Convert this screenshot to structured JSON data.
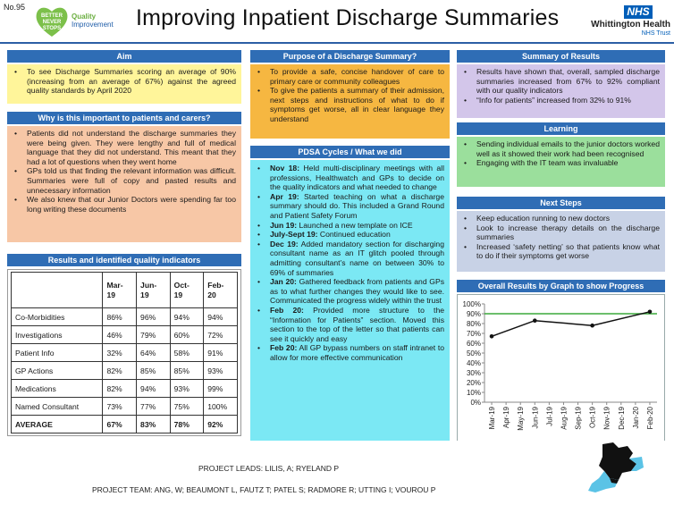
{
  "header": {
    "poster_no": "No.95",
    "logo_text": [
      "BETTER",
      "NEVER",
      "STOPS"
    ],
    "qi_line1": "Quality",
    "qi_line2": "Improvement",
    "title": "Improving Inpatient Discharge Summaries",
    "nhs_badge": "NHS",
    "trust_name": "Whittington Health",
    "trust_sub": "NHS Trust"
  },
  "aim": {
    "heading": "Aim",
    "items": [
      "To see Discharge Summaries scoring an average of 90% (increasing from an average of 67%) against the agreed quality standards by April 2020"
    ]
  },
  "why": {
    "heading": "Why is this important to patients and carers?",
    "items": [
      "Patients did not understand the discharge summaries they were being given. They were lengthy and full of medical language that they did not understand. This meant that they had a lot of questions when they went home",
      "GPs told us that finding the relevant information was difficult. Summaries were full of copy and pasted results and unnecessary information",
      "We also knew that our Junior Doctors were spending far too long writing these documents"
    ]
  },
  "results_table": {
    "heading": "Results and identified quality indicators",
    "columns": [
      "Mar-19",
      "Jun-19",
      "Oct-19",
      "Feb-20"
    ],
    "rows": [
      {
        "label": "Co-Morbidities",
        "values": [
          "86%",
          "96%",
          "94%",
          "94%"
        ]
      },
      {
        "label": "Investigations",
        "values": [
          "46%",
          "79%",
          "60%",
          "72%"
        ]
      },
      {
        "label": "Patient Info",
        "values": [
          "32%",
          "64%",
          "58%",
          "91%"
        ]
      },
      {
        "label": "GP Actions",
        "values": [
          "82%",
          "85%",
          "85%",
          "93%"
        ]
      },
      {
        "label": "Medications",
        "values": [
          "82%",
          "94%",
          "93%",
          "99%"
        ]
      },
      {
        "label": "Named Consultant",
        "values": [
          "73%",
          "77%",
          "75%",
          "100%"
        ]
      }
    ],
    "average": {
      "label": "AVERAGE",
      "values": [
        "67%",
        "83%",
        "78%",
        "92%"
      ]
    }
  },
  "purpose": {
    "heading": "Purpose of a Discharge Summary?",
    "items": [
      "To provide a safe, concise handover of care to primary care or community colleagues",
      "To give the patients a summary of their admission, next steps and instructions of what to do if symptoms get worse, all in clear language they understand"
    ]
  },
  "pdsa": {
    "heading": "PDSA Cycles / What we did",
    "items": [
      {
        "date": "Nov 18:",
        "text": "Held multi-disciplinary meetings with all professions, Healthwatch and GPs to decide on the quality indicators and what needed to change"
      },
      {
        "date": "Apr 19:",
        "text": "Started teaching on what a discharge summary should do. This included a Grand Round and Patient Safety Forum"
      },
      {
        "date": "Jun 19:",
        "text": "Launched a new template on ICE"
      },
      {
        "date": "July-Sept 19:",
        "text": "Continued education"
      },
      {
        "date": "Dec 19:",
        "text": "Added mandatory section for discharging consultant name as an IT glitch pooled through admitting consultant’s name on between 30% to 69% of summaries"
      },
      {
        "date": "Jan 20:",
        "text": "Gathered feedback from patients and GPs as to what further changes they would like to see. Communicated the progress widely within the trust"
      },
      {
        "date": "Feb 20:",
        "text": "Provided more structure to the “Information for Patients” section. Moved this section to the top of the letter so that patients can see it quickly and easy"
      },
      {
        "date": "Feb 20:",
        "text": "All GP bypass numbers on staff intranet to allow for more effective communication"
      }
    ]
  },
  "summary": {
    "heading": "Summary of Results",
    "items": [
      "Results have shown that, overall, sampled discharge summaries increased from 67% to 92% compliant with our quality indicators",
      "“Info for patients” increased from 32% to 91%"
    ]
  },
  "learning": {
    "heading": "Learning",
    "items": [
      "Sending individual emails to the junior doctors worked well as it showed their work had been recognised",
      "Engaging with the IT team was invaluable"
    ]
  },
  "next_steps": {
    "heading": "Next Steps",
    "items": [
      "Keep education running to new doctors",
      "Look to increase therapy details on the discharge summaries",
      "Increased ‘safety netting’ so that patients know what to do if their symptoms get worse"
    ]
  },
  "chart_data": {
    "type": "line",
    "title": "Overall Results by Graph to show Progress",
    "categories": [
      "Mar-19",
      "Apr-19",
      "May-19",
      "Jun-19",
      "Jul-19",
      "Aug-19",
      "Sep-19",
      "Oct-19",
      "Nov-19",
      "Dec-19",
      "Jan-20",
      "Feb-20"
    ],
    "series": [
      {
        "values": [
          67,
          null,
          null,
          83,
          null,
          null,
          null,
          78,
          null,
          null,
          null,
          92
        ],
        "color": "#111111"
      }
    ],
    "target": 90,
    "target_color": "#3caa3c",
    "ylim": [
      0,
      100
    ],
    "y_ticks": [
      "0%",
      "10%",
      "20%",
      "30%",
      "40%",
      "50%",
      "60%",
      "70%",
      "80%",
      "90%",
      "100%"
    ],
    "grid": false
  },
  "footer": {
    "leads": "PROJECT LEADS: LILIS, A; RYELAND P",
    "team": "PROJECT TEAM: ANG, W; BEAUMONT L, FAUTZ T; PATEL S; RADMORE R; UTTING I; VOUROU P"
  }
}
